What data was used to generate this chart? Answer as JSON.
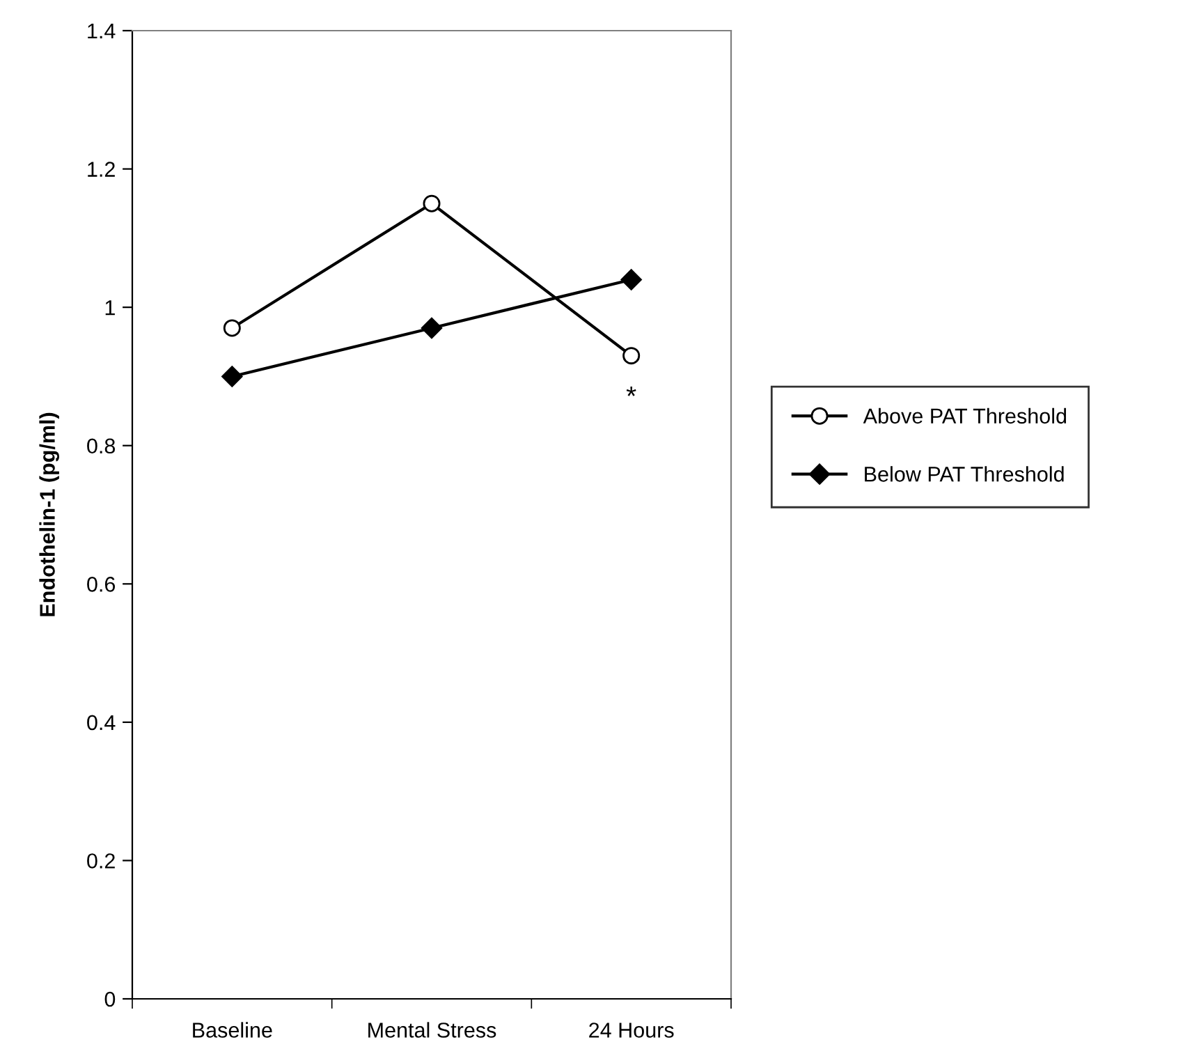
{
  "chart_data": {
    "type": "line",
    "ylabel": "Endothelin-1 (pg/ml)",
    "categories": [
      "Baseline",
      "Mental Stress",
      "24 Hours"
    ],
    "series": [
      {
        "name": "Above PAT Threshold",
        "color": "#000000",
        "marker": "circle",
        "values": [
          0.97,
          1.15,
          0.93
        ]
      },
      {
        "name": "Below PAT Threshold",
        "color": "#000000",
        "marker": "diamond",
        "values": [
          0.9,
          0.97,
          1.04
        ]
      }
    ],
    "ylim": [
      0,
      1.4
    ],
    "yticks": [
      0,
      0.2,
      0.4,
      0.6,
      0.8,
      1,
      1.2,
      1.4
    ],
    "annotations": [
      "*"
    ],
    "grid": false,
    "legend": "right",
    "line_style": "solid"
  }
}
